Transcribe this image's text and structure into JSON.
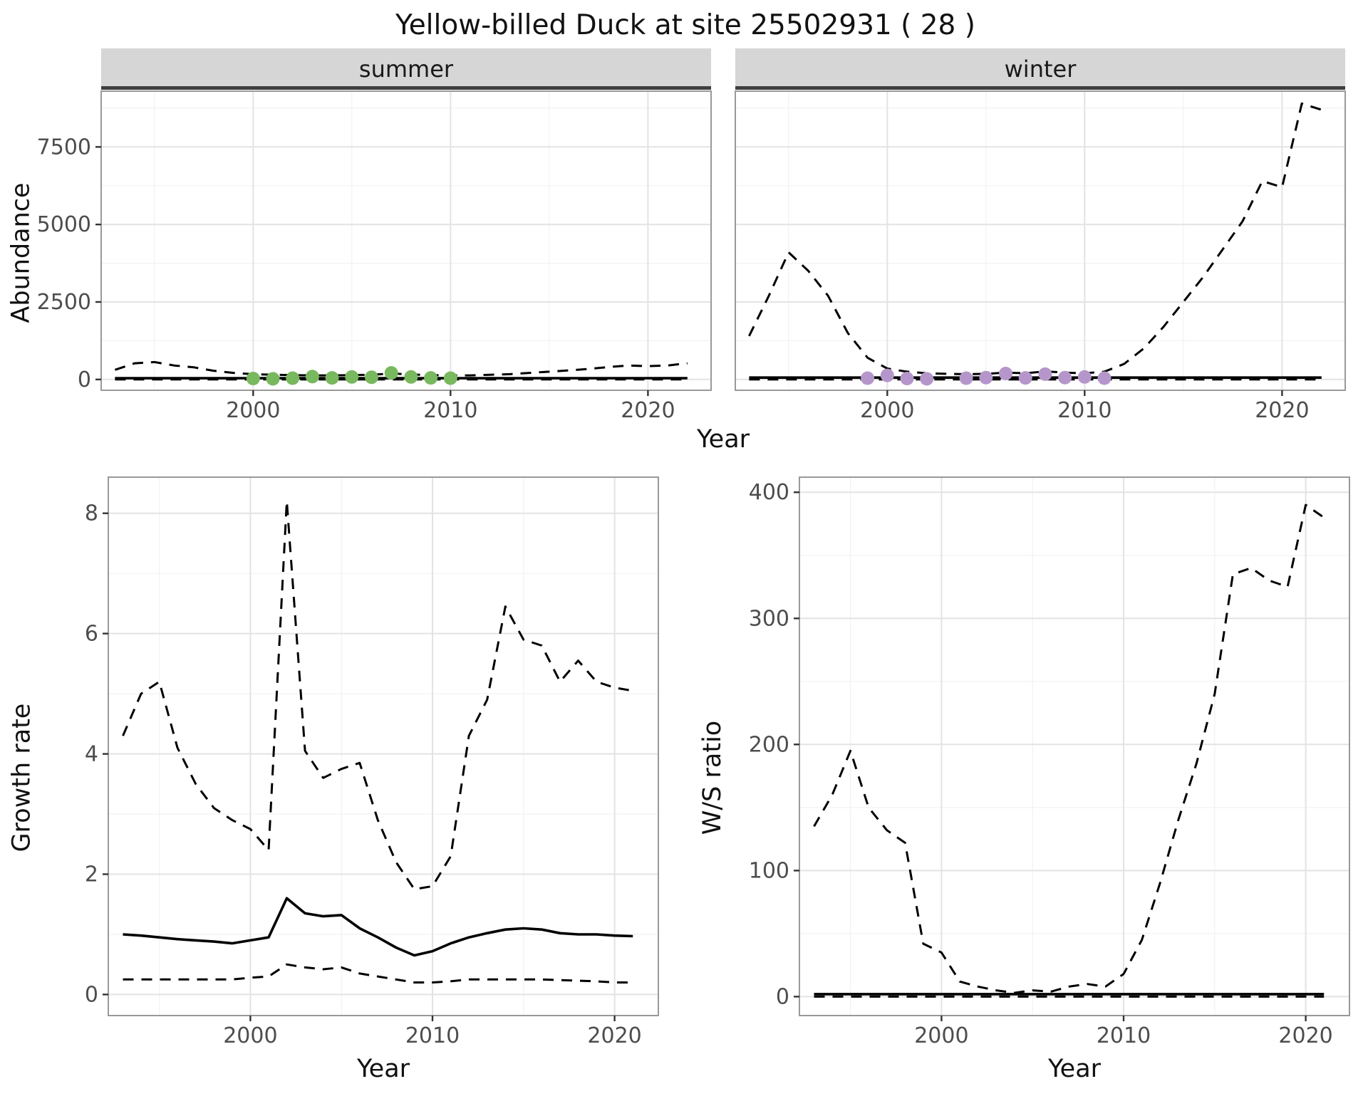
{
  "title": "Yellow-billed Duck at site 25502931 ( 28 )",
  "style": {
    "line_color": "#000000",
    "grid_major": "#e3e3e3",
    "grid_minor": "#f2f2f2",
    "panel_border": "#999999",
    "strip_bg": "#d6d6d6",
    "strip_border": "#3f3f3f",
    "tick_color": "#333333",
    "tick_text_color": "#4d4d4d",
    "summer_point_color": "#78b85e",
    "winter_point_color": "#b596ca"
  },
  "chart_data": [
    {
      "id": "abundance-summer",
      "type": "line",
      "facet": "summer",
      "xlabel": "Year",
      "ylabel": "Abundance",
      "xlim": [
        1992.3,
        2023.2
      ],
      "ylim": [
        -350,
        9300
      ],
      "xticks": [
        2000,
        2010,
        2020
      ],
      "yticks": [
        0,
        2500,
        5000,
        7500
      ],
      "x": [
        1993,
        1994,
        1995,
        1996,
        1997,
        1998,
        1999,
        2000,
        2001,
        2002,
        2003,
        2004,
        2005,
        2006,
        2007,
        2008,
        2009,
        2010,
        2011,
        2012,
        2013,
        2014,
        2015,
        2016,
        2017,
        2018,
        2019,
        2020,
        2021,
        2022
      ],
      "series": [
        {
          "name": "median",
          "style": "solid",
          "values": [
            40,
            40,
            40,
            40,
            40,
            40,
            40,
            40,
            40,
            40,
            40,
            40,
            40,
            40,
            40,
            40,
            40,
            40,
            40,
            40,
            40,
            40,
            40,
            40,
            40,
            40,
            40,
            40,
            40,
            40
          ]
        },
        {
          "name": "upper_ci",
          "style": "dashed",
          "values": [
            310,
            520,
            560,
            450,
            390,
            280,
            210,
            170,
            150,
            140,
            130,
            130,
            140,
            150,
            190,
            160,
            140,
            130,
            130,
            150,
            170,
            210,
            250,
            290,
            340,
            400,
            450,
            430,
            450,
            520
          ]
        },
        {
          "name": "lower_ci",
          "style": "dashed",
          "values": [
            0,
            0,
            0,
            0,
            0,
            0,
            0,
            0,
            0,
            0,
            0,
            0,
            0,
            0,
            0,
            0,
            0,
            0,
            0,
            0,
            0,
            0,
            0,
            0,
            0,
            0,
            0,
            0,
            0,
            0
          ]
        }
      ],
      "points": {
        "name": "summer-observations",
        "color": "#78b85e",
        "x": [
          2000,
          2001,
          2002,
          2003,
          2004,
          2005,
          2006,
          2007,
          2008,
          2009,
          2010
        ],
        "y": [
          30,
          20,
          40,
          90,
          50,
          80,
          70,
          210,
          80,
          50,
          40
        ]
      }
    },
    {
      "id": "abundance-winter",
      "type": "line",
      "facet": "winter",
      "xlabel": "Year",
      "ylabel": "Abundance",
      "xlim": [
        1992.3,
        2023.2
      ],
      "ylim": [
        -350,
        9300
      ],
      "xticks": [
        2000,
        2010,
        2020
      ],
      "yticks": [
        0,
        2500,
        5000,
        7500
      ],
      "x": [
        1993,
        1994,
        1995,
        1996,
        1997,
        1998,
        1999,
        2000,
        2001,
        2002,
        2003,
        2004,
        2005,
        2006,
        2007,
        2008,
        2009,
        2010,
        2011,
        2012,
        2013,
        2014,
        2015,
        2016,
        2017,
        2018,
        2019,
        2020,
        2021,
        2022
      ],
      "series": [
        {
          "name": "median",
          "style": "solid",
          "values": [
            60,
            60,
            60,
            60,
            60,
            60,
            60,
            60,
            60,
            60,
            60,
            60,
            60,
            60,
            60,
            60,
            60,
            60,
            60,
            60,
            60,
            60,
            60,
            60,
            60,
            60,
            60,
            60,
            60,
            60
          ]
        },
        {
          "name": "upper_ci",
          "style": "dashed",
          "values": [
            1400,
            2700,
            4100,
            3500,
            2700,
            1500,
            700,
            350,
            250,
            200,
            180,
            170,
            180,
            220,
            200,
            260,
            220,
            200,
            250,
            500,
            1000,
            1700,
            2500,
            3300,
            4200,
            5100,
            6400,
            6200,
            8900,
            8700
          ]
        },
        {
          "name": "lower_ci",
          "style": "dashed",
          "values": [
            0,
            0,
            0,
            0,
            0,
            0,
            0,
            0,
            0,
            0,
            0,
            0,
            0,
            0,
            0,
            0,
            0,
            0,
            0,
            0,
            0,
            0,
            0,
            0,
            0,
            0,
            0,
            0,
            0,
            0
          ]
        }
      ],
      "points": {
        "name": "winter-observations",
        "color": "#b596ca",
        "x": [
          1999,
          2000,
          2001,
          2002,
          2004,
          2005,
          2006,
          2007,
          2008,
          2009,
          2010,
          2011
        ],
        "y": [
          40,
          130,
          30,
          20,
          40,
          60,
          190,
          50,
          170,
          60,
          80,
          40
        ]
      }
    },
    {
      "id": "growth-rate",
      "type": "line",
      "facet": "",
      "xlabel": "Year",
      "ylabel": "Growth rate",
      "xlim": [
        1992.2,
        2022.4
      ],
      "ylim": [
        -0.35,
        8.6
      ],
      "xticks": [
        2000,
        2010,
        2020
      ],
      "yticks": [
        0,
        2,
        4,
        6,
        8
      ],
      "x": [
        1993,
        1994,
        1995,
        1996,
        1997,
        1998,
        1999,
        2000,
        2001,
        2002,
        2003,
        2004,
        2005,
        2006,
        2007,
        2008,
        2009,
        2010,
        2011,
        2012,
        2013,
        2014,
        2015,
        2016,
        2017,
        2018,
        2019,
        2020,
        2021
      ],
      "series": [
        {
          "name": "median",
          "style": "solid",
          "values": [
            1.0,
            0.98,
            0.95,
            0.92,
            0.9,
            0.88,
            0.85,
            0.9,
            0.95,
            1.6,
            1.35,
            1.3,
            1.32,
            1.1,
            0.95,
            0.78,
            0.65,
            0.72,
            0.85,
            0.95,
            1.02,
            1.08,
            1.1,
            1.08,
            1.02,
            1.0,
            1.0,
            0.98,
            0.97
          ]
        },
        {
          "name": "upper_ci",
          "style": "dashed",
          "values": [
            4.3,
            5.0,
            5.2,
            4.1,
            3.5,
            3.1,
            2.9,
            2.75,
            2.4,
            8.2,
            4.05,
            3.6,
            3.75,
            3.85,
            2.9,
            2.2,
            1.75,
            1.8,
            2.3,
            4.3,
            4.9,
            6.45,
            5.9,
            5.8,
            5.2,
            5.55,
            5.2,
            5.1,
            5.05
          ]
        },
        {
          "name": "lower_ci",
          "style": "dashed",
          "values": [
            0.25,
            0.25,
            0.25,
            0.25,
            0.25,
            0.25,
            0.25,
            0.28,
            0.3,
            0.5,
            0.45,
            0.42,
            0.45,
            0.35,
            0.3,
            0.25,
            0.2,
            0.2,
            0.22,
            0.25,
            0.25,
            0.25,
            0.25,
            0.25,
            0.24,
            0.23,
            0.22,
            0.2,
            0.2
          ]
        }
      ],
      "points": null
    },
    {
      "id": "ws-ratio",
      "type": "line",
      "facet": "",
      "xlabel": "Year",
      "ylabel": "W/S ratio",
      "xlim": [
        1992.2,
        2022.4
      ],
      "ylim": [
        -15,
        412
      ],
      "xticks": [
        2000,
        2010,
        2020
      ],
      "yticks": [
        0,
        100,
        200,
        300,
        400
      ],
      "x": [
        1993,
        1994,
        1995,
        1996,
        1997,
        1998,
        1999,
        2000,
        2001,
        2002,
        2003,
        2004,
        2005,
        2006,
        2007,
        2008,
        2009,
        2010,
        2011,
        2012,
        2013,
        2014,
        2015,
        2016,
        2017,
        2018,
        2019,
        2020,
        2021
      ],
      "series": [
        {
          "name": "median",
          "style": "solid",
          "values": [
            2,
            2,
            2,
            2,
            2,
            2,
            2,
            2,
            2,
            2,
            2,
            2,
            2,
            2,
            2,
            2,
            2,
            2,
            2,
            2,
            2,
            2,
            2,
            2,
            2,
            2,
            2,
            2,
            2
          ]
        },
        {
          "name": "upper_ci",
          "style": "dashed",
          "values": [
            135,
            160,
            195,
            150,
            132,
            122,
            42,
            35,
            12,
            8,
            5,
            3,
            5,
            4,
            8,
            10,
            8,
            18,
            45,
            90,
            140,
            185,
            240,
            335,
            340,
            330,
            325,
            390,
            380
          ]
        },
        {
          "name": "lower_ci",
          "style": "dashed",
          "values": [
            0,
            0,
            0,
            0,
            0,
            0,
            0,
            0,
            0,
            0,
            0,
            0,
            0,
            0,
            0,
            0,
            0,
            0,
            0,
            0,
            0,
            0,
            0,
            0,
            0,
            0,
            0,
            0,
            0
          ]
        }
      ],
      "points": null
    }
  ]
}
